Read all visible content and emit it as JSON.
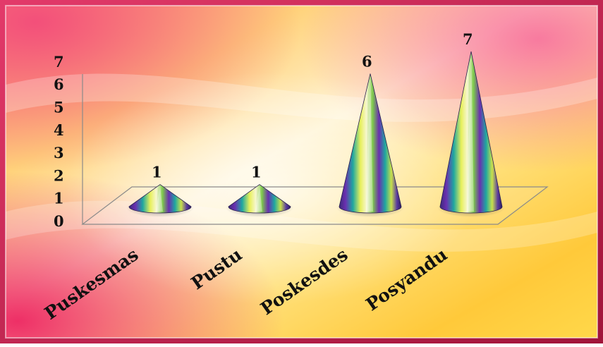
{
  "chart_data": {
    "type": "bar",
    "title": "",
    "xlabel": "",
    "ylabel": "",
    "categories": [
      "Puskesmas",
      "Pustu",
      "Poskesdes",
      "Posyandu"
    ],
    "values": [
      1,
      1,
      6,
      7
    ],
    "ylim": [
      0,
      7
    ],
    "yticks": [
      "0",
      "1",
      "2",
      "3",
      "4",
      "5",
      "6",
      "7"
    ],
    "grid": false,
    "legend": "none",
    "colors": {
      "frame_outer": "#b01a3a",
      "background_warm": "#ffcc33",
      "background_pink": "#f03c74",
      "cone_purple": "#6a2fb0",
      "cone_teal": "#1fa7a0",
      "cone_yellow": "#e7f05a"
    }
  }
}
